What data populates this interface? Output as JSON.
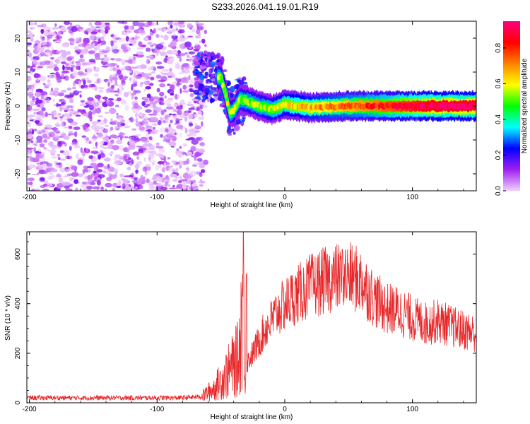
{
  "title": "S233.2026.041.19.01.R19",
  "chart_data": [
    {
      "type": "heatmap",
      "name": "spectrogram",
      "xlabel": "Height of straight line (km)",
      "ylabel": "Frequency (Hz)",
      "xlim": [
        -202,
        150
      ],
      "ylim": [
        -25,
        25
      ],
      "x_ticks": [
        -200,
        -100,
        0,
        100
      ],
      "y_ticks": [
        -20,
        -10,
        0,
        10,
        20
      ],
      "colorbar": {
        "label": "Normalized spectral amplitude",
        "range": [
          0,
          0.95
        ],
        "ticks": [
          0.0,
          0.2,
          0.4,
          0.6,
          0.8
        ],
        "colors": [
          "#f0d0ff",
          "#a020f0",
          "#0000ff",
          "#00ffff",
          "#00ff00",
          "#ffff00",
          "#ff8000",
          "#ff0000",
          "#ff0080"
        ]
      },
      "regions": [
        {
          "name": "noise",
          "x_range": [
            -202,
            -62
          ],
          "freq_range": [
            -25,
            25
          ],
          "amplitude": [
            0.0,
            0.15
          ]
        },
        {
          "name": "transition",
          "x_range": [
            -70,
            -30
          ],
          "freq_range": [
            -15,
            25
          ],
          "amplitude": [
            0.05,
            0.3
          ]
        },
        {
          "name": "carrier",
          "x_range": [
            -30,
            150
          ],
          "freq_center": 0,
          "freq_halfwidth": 2.5,
          "amplitude": [
            0.3,
            0.95
          ]
        }
      ],
      "carrier_track": [
        {
          "x": -50,
          "f": 8.5
        },
        {
          "x": -46,
          "f": 3
        },
        {
          "x": -43,
          "f": -2
        },
        {
          "x": -40,
          "f": -1.5
        },
        {
          "x": -35,
          "f": 2
        },
        {
          "x": -30,
          "f": 1.5
        },
        {
          "x": -20,
          "f": 0
        },
        {
          "x": -10,
          "f": -1
        },
        {
          "x": 0,
          "f": 0.5
        },
        {
          "x": 20,
          "f": -0.5
        },
        {
          "x": 50,
          "f": 0
        },
        {
          "x": 150,
          "f": 0
        }
      ]
    },
    {
      "type": "line",
      "name": "snr",
      "xlabel": "Height of straight line (km)",
      "ylabel": "SNR (10 * v/v)",
      "xlim": [
        -202,
        150
      ],
      "ylim": [
        0,
        690
      ],
      "x_ticks": [
        -200,
        -100,
        0,
        100
      ],
      "y_ticks": [
        0,
        200,
        400,
        600
      ],
      "color": "#e8282a",
      "envelope": [
        {
          "x": -202,
          "y": 20
        },
        {
          "x": -80,
          "y": 20
        },
        {
          "x": -65,
          "y": 25
        },
        {
          "x": -55,
          "y": 60
        },
        {
          "x": -45,
          "y": 120
        },
        {
          "x": -36,
          "y": 180
        },
        {
          "x": -33,
          "y": 420
        },
        {
          "x": -31,
          "y": 150
        },
        {
          "x": -25,
          "y": 200
        },
        {
          "x": -15,
          "y": 300
        },
        {
          "x": -5,
          "y": 370
        },
        {
          "x": 5,
          "y": 420
        },
        {
          "x": 20,
          "y": 470
        },
        {
          "x": 35,
          "y": 500
        },
        {
          "x": 50,
          "y": 510
        },
        {
          "x": 60,
          "y": 490
        },
        {
          "x": 70,
          "y": 420
        },
        {
          "x": 80,
          "y": 380
        },
        {
          "x": 90,
          "y": 370
        },
        {
          "x": 100,
          "y": 340
        },
        {
          "x": 110,
          "y": 320
        },
        {
          "x": 120,
          "y": 330
        },
        {
          "x": 135,
          "y": 300
        },
        {
          "x": 150,
          "y": 280
        }
      ],
      "peaks": [
        {
          "x": -32.5,
          "y": 690
        },
        {
          "x": -30,
          "y": 520
        },
        {
          "x": 45,
          "y": 620
        }
      ]
    }
  ]
}
